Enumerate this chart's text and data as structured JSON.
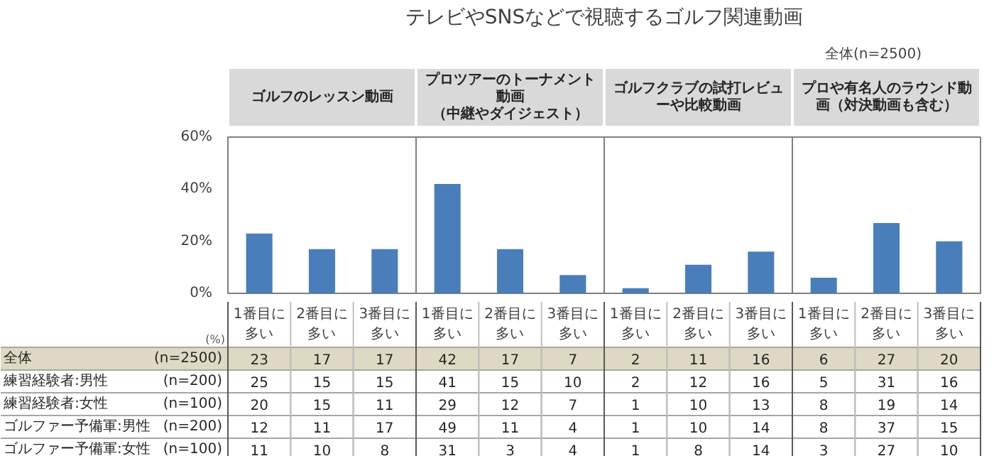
{
  "chart_data": [
    {
      "type": "bar",
      "title": "テレビやSNSなどで視聴するゴルフ関連動画",
      "categories": [
        null,
        null,
        null,
        null,
        null,
        null,
        null,
        null,
        null,
        null,
        null,
        null
      ],
      "series": [
        {
          "name": "全体(n=2500)",
          "color": "#4a7ebb",
          "values": [
            23,
            17,
            17,
            42,
            17,
            7,
            2,
            11,
            16,
            6,
            27,
            20
          ]
        }
      ],
      "annotations": [
        "ゴルフのレッスン動画",
        "プロツアーのトーナメント動画（中継やダイジェスト）",
        "ゴルフクラブの試打レビューや比較動画",
        "プロや有名人のラウンド動画（対決動画も含む）"
      ],
      "ylim": [
        0,
        60
      ],
      "yticks": [
        {
          "value": 0,
          "label": "0%"
        },
        {
          "value": 20,
          "label": "20%"
        },
        {
          "value": 40,
          "label": "40%"
        },
        {
          "value": 60,
          "label": "60%"
        }
      ],
      "legend": "top right",
      "grid": false
    },
    {
      "type": "heatmap",
      "categories": [
        "1番目に多い",
        "2番目に多い",
        "3番目に多い",
        "1番目に多い",
        "2番目に多い",
        "3番目に多い",
        "1番目に多い",
        "2番目に多い",
        "3番目に多い",
        "1番目に多い",
        "2番目に多い",
        "3番目に多い"
      ],
      "y_categories": [
        "全体",
        "練習経験者:男性",
        "練習経験者:女性",
        "ゴルファー予備軍:男性",
        "ゴルファー予備軍:女性"
      ],
      "y2_categories": [
        "(n=2500)",
        "(n=200)",
        "(n=100)",
        "(n=200)",
        "(n=100)"
      ],
      "cells": [
        [
          23,
          17,
          17,
          42,
          17,
          7,
          2,
          11,
          16,
          6,
          27,
          20
        ],
        [
          25,
          15,
          15,
          41,
          15,
          10,
          2,
          12,
          16,
          5,
          31,
          16
        ],
        [
          20,
          15,
          11,
          29,
          12,
          7,
          1,
          10,
          13,
          8,
          19,
          14
        ],
        [
          12,
          11,
          17,
          49,
          11,
          4,
          1,
          10,
          14,
          8,
          37,
          15
        ],
        [
          11,
          10,
          8,
          31,
          3,
          4,
          1,
          8,
          14,
          3,
          27,
          10
        ]
      ],
      "annotations": [
        "(%)"
      ],
      "data_labels": true
    }
  ]
}
